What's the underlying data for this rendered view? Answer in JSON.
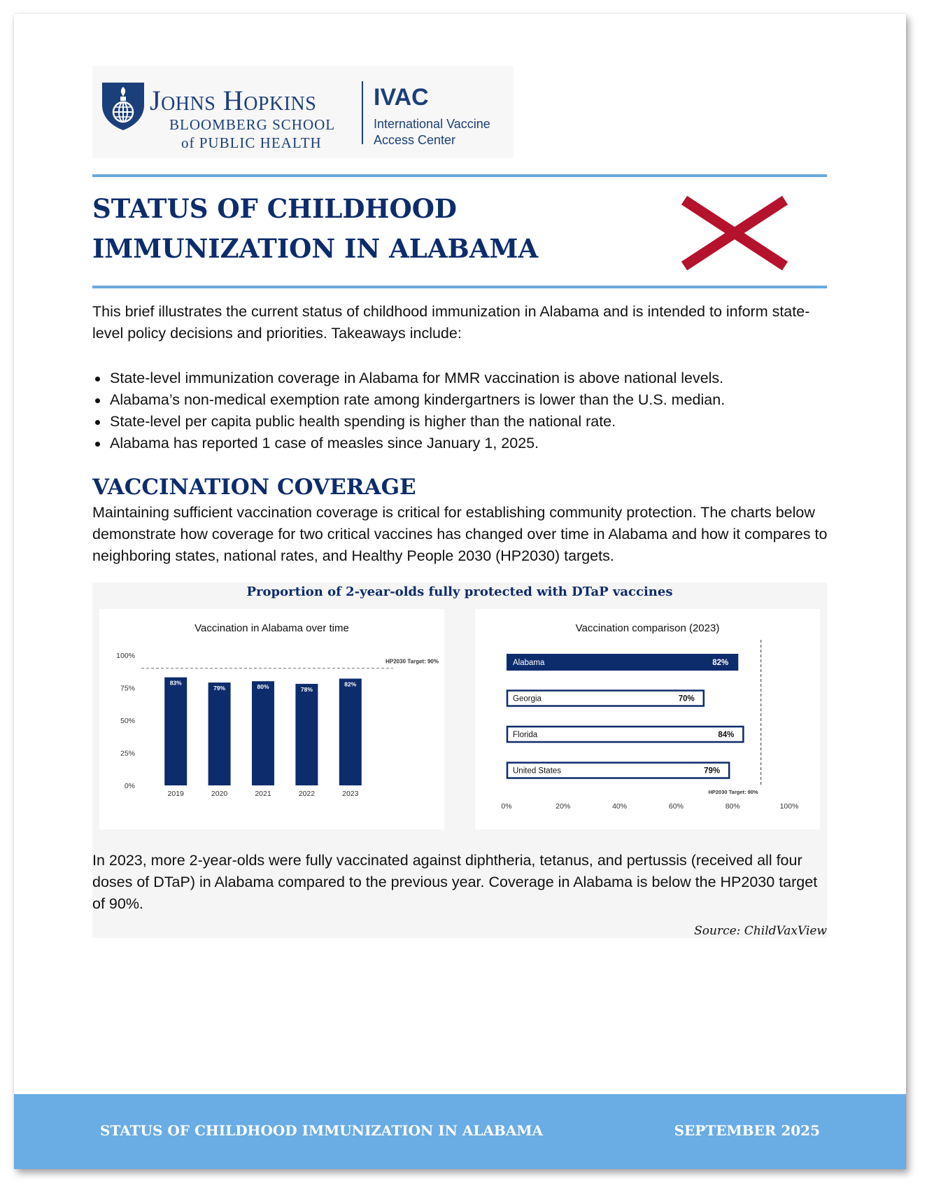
{
  "logo": {
    "org_name": "Johns Hopkins",
    "school_line1": "BLOOMBERG SCHOOL",
    "school_line2": "of PUBLIC HEALTH",
    "center_abbr": "IVAC",
    "center_name_line1": "International Vaccine",
    "center_name_line2": "Access Center",
    "shield_icon": "university-shield-icon"
  },
  "title": "STATUS OF CHILDHOOD IMMUNIZATION IN ALABAMA",
  "flag": {
    "icon": "alabama-flag-saltire-icon",
    "color": "#b5122e"
  },
  "intro": "This brief illustrates the current status of childhood immunization in Alabama and is intended to inform state-level policy decisions and priorities. Takeaways include:",
  "takeaways": [
    "State-level immunization coverage in Alabama for MMR vaccination is above national levels.",
    "Alabama’s non-medical exemption rate among kindergartners is lower than the U.S. median.",
    "State-level per capita public health spending is higher than the national rate.",
    "Alabama has reported 1 case of measles since January 1, 2025."
  ],
  "section": {
    "heading": "VACCINATION COVERAGE",
    "text": "Maintaining sufficient vaccination coverage is critical for establishing community protection. The charts below demonstrate how coverage for two critical vaccines has changed over time in Alabama and how it compares to neighboring states, national rates, and Healthy People 2030 (HP2030) targets."
  },
  "panel": {
    "title": "Proportion of 2-year-olds fully protected with DTaP vaccines",
    "note": "In 2023, more 2-year-olds were fully vaccinated against diphtheria, tetanus, and pertussis (received all four doses of DTaP) in Alabama compared to the previous year. Coverage in Alabama is below the HP2030 target of 90%.",
    "source": "Source: ChildVaxView"
  },
  "chart_data": [
    {
      "type": "bar",
      "title": "Vaccination in Alabama over time",
      "categories": [
        "2019",
        "2020",
        "2021",
        "2022",
        "2023"
      ],
      "values": [
        83,
        79,
        80,
        78,
        82
      ],
      "value_labels": [
        "83%",
        "79%",
        "80%",
        "78%",
        "82%"
      ],
      "ylim": [
        0,
        100
      ],
      "yticks": [
        "0%",
        "25%",
        "50%",
        "75%",
        "100%"
      ],
      "target": {
        "value": 90,
        "label": "HP2030 Target: 90%"
      },
      "bar_color": "#0d2c6c"
    },
    {
      "type": "bar",
      "orientation": "horizontal",
      "title": "Vaccination comparison (2023)",
      "categories": [
        "Alabama",
        "Georgia",
        "Florida",
        "United States"
      ],
      "values": [
        82,
        70,
        84,
        79
      ],
      "value_labels": [
        "82%",
        "70%",
        "84%",
        "79%"
      ],
      "highlight": "Alabama",
      "xlim": [
        0,
        100
      ],
      "xticks": [
        "0%",
        "20%",
        "40%",
        "60%",
        "80%",
        "100%"
      ],
      "target": {
        "value": 90,
        "label": "HP2030 Target: 90%"
      },
      "bar_color": "#0d2c6c"
    }
  ],
  "footer": {
    "left": "STATUS OF CHILDHOOD IMMUNIZATION IN ALABAMA",
    "right": "SEPTEMBER 2025"
  }
}
